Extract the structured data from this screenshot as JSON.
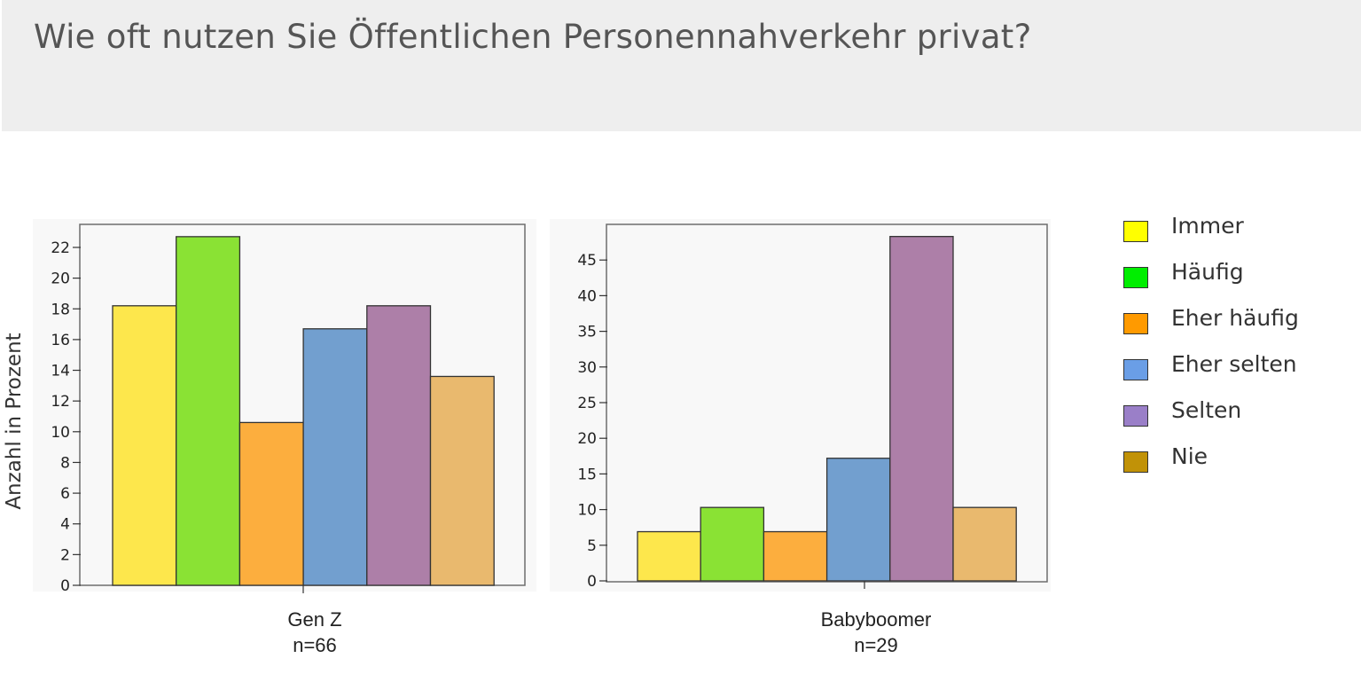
{
  "header": {
    "title": "Wie oft nutzen Sie Öffentlichen Personennahverkehr privat?"
  },
  "ylabel": "Anzahl in Prozent",
  "legend": [
    {
      "label": "Immer",
      "color": "#ffff00"
    },
    {
      "label": "Häufig",
      "color": "#00ee00"
    },
    {
      "label": "Eher häufig",
      "color": "#ff9a00"
    },
    {
      "label": "Eher selten",
      "color": "#6a9ee6"
    },
    {
      "label": "Selten",
      "color": "#9a7fc8"
    },
    {
      "label": "Nie",
      "color": "#c19207"
    }
  ],
  "chart_data": [
    {
      "type": "bar",
      "group": "Gen Z",
      "sample": "n=66",
      "categories": [
        "Immer",
        "Häufig",
        "Eher häufig",
        "Eher selten",
        "Selten",
        "Nie"
      ],
      "values": [
        18.2,
        22.7,
        10.6,
        16.7,
        18.2,
        13.6
      ],
      "colors": [
        "#fde74c",
        "#8ae234",
        "#fcae3e",
        "#729fcf",
        "#ad7fa8",
        "#e9b96e"
      ],
      "ylabel": "Anzahl in Prozent",
      "ylim": [
        0,
        23.5
      ],
      "yticks": [
        0,
        2,
        4,
        6,
        8,
        10,
        12,
        14,
        16,
        18,
        20,
        22
      ]
    },
    {
      "type": "bar",
      "group": "Babyboomer",
      "sample": "n=29",
      "categories": [
        "Immer",
        "Häufig",
        "Eher häufig",
        "Eher selten",
        "Selten",
        "Nie"
      ],
      "values": [
        6.9,
        10.3,
        6.9,
        17.2,
        48.3,
        10.3
      ],
      "colors": [
        "#fde74c",
        "#8ae234",
        "#fcae3e",
        "#729fcf",
        "#ad7fa8",
        "#e9b96e"
      ],
      "ylim": [
        0,
        50
      ],
      "yticks": [
        0,
        5,
        10,
        15,
        20,
        25,
        30,
        35,
        40,
        45
      ]
    }
  ]
}
